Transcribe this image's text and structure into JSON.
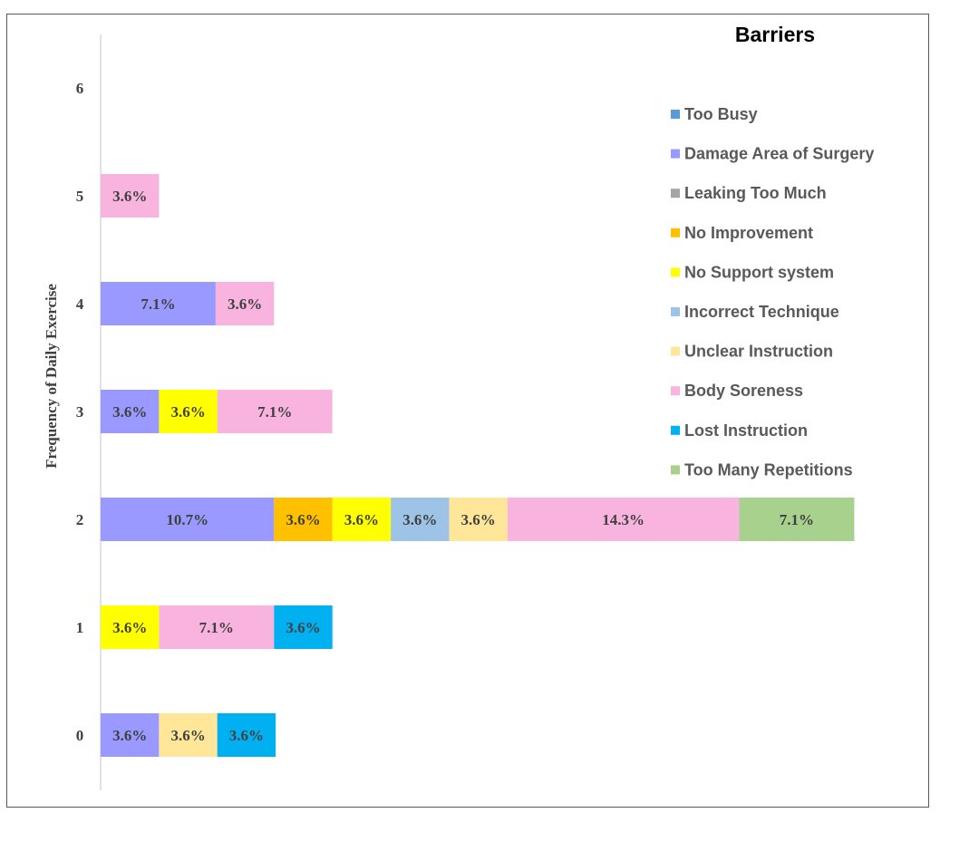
{
  "chart_data": {
    "type": "bar",
    "orientation": "horizontal",
    "stacked": true,
    "title": "Barriers",
    "ylabel": "Frequency of Daily Exercise",
    "xlabel": "",
    "categories": [
      "0",
      "1",
      "2",
      "3",
      "4",
      "5",
      "6"
    ],
    "value_unit": "percent",
    "grid": false,
    "legend_position": "right",
    "series": [
      {
        "name": "Too Busy",
        "color": "#5b9bd5",
        "values": [
          0,
          0,
          0,
          0,
          0,
          0,
          0
        ],
        "labels": [
          "",
          "",
          "",
          "",
          "",
          "",
          ""
        ]
      },
      {
        "name": "Damage Area of Surgery",
        "color": "#9999ff",
        "values": [
          3.6,
          0,
          10.7,
          3.6,
          7.1,
          0,
          0
        ],
        "labels": [
          "3.6%",
          "",
          "10.7%",
          "3.6%",
          "7.1%",
          "",
          ""
        ]
      },
      {
        "name": "Leaking Too Much",
        "color": "#a5a5a5",
        "values": [
          0,
          0,
          0,
          0,
          0,
          0,
          0
        ],
        "labels": [
          "",
          "",
          "",
          "",
          "",
          "",
          ""
        ]
      },
      {
        "name": "No Improvement",
        "color": "#ffc000",
        "values": [
          0,
          0,
          3.6,
          0,
          0,
          0,
          0
        ],
        "labels": [
          "",
          "",
          "3.6%",
          "",
          "",
          "",
          ""
        ]
      },
      {
        "name": "No Support system",
        "color": "#ffff00",
        "values": [
          0,
          3.6,
          3.6,
          3.6,
          0,
          0,
          0
        ],
        "labels": [
          "",
          "3.6%",
          "3.6%",
          "3.6%",
          "",
          "",
          ""
        ]
      },
      {
        "name": "Incorrect Technique",
        "color": "#9dc3e6",
        "values": [
          0,
          0,
          3.6,
          0,
          0,
          0,
          0
        ],
        "labels": [
          "",
          "",
          "3.6%",
          "",
          "",
          "",
          ""
        ]
      },
      {
        "name": "Unclear Instruction",
        "color": "#ffe699",
        "values": [
          3.6,
          0,
          3.6,
          0,
          0,
          0,
          0
        ],
        "labels": [
          "3.6%",
          "",
          "3.6%",
          "",
          "",
          "",
          ""
        ]
      },
      {
        "name": "Body Soreness",
        "color": "#f8b4de",
        "values": [
          0,
          7.1,
          14.3,
          7.1,
          3.6,
          3.6,
          0
        ],
        "labels": [
          "",
          "7.1%",
          "14.3%",
          "7.1%",
          "3.6%",
          "3.6%",
          ""
        ]
      },
      {
        "name": "Lost Instruction",
        "color": "#00b0f0",
        "values": [
          3.6,
          3.6,
          0,
          0,
          0,
          0,
          0
        ],
        "labels": [
          "3.6%",
          "3.6%",
          "",
          "",
          "",
          "",
          ""
        ]
      },
      {
        "name": "Too Many Repetitions",
        "color": "#a9d18e",
        "values": [
          0,
          0,
          7.1,
          0,
          0,
          0,
          0
        ],
        "labels": [
          "",
          "",
          "7.1%",
          "",
          "",
          "",
          ""
        ]
      }
    ]
  }
}
